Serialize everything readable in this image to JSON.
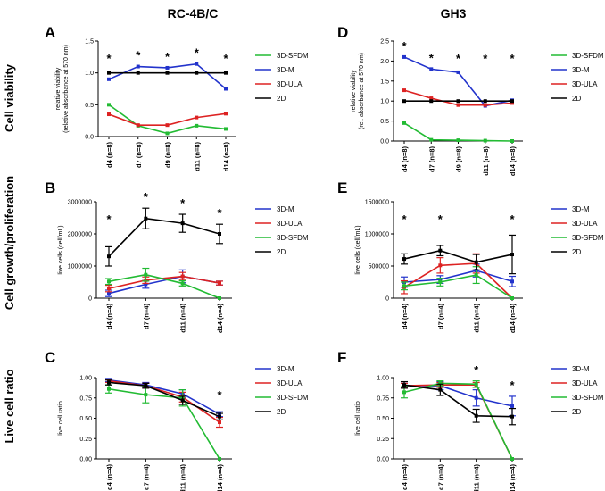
{
  "figure": {
    "column_titles": [
      "RC-4B/C",
      "GH3"
    ],
    "row_labels": [
      "Cell viability",
      "Cell growth/proliferation",
      "Live cell ratio"
    ]
  },
  "chart_data": [
    {
      "panel": "A",
      "type": "line",
      "column": "RC-4B/C",
      "row": "Cell viability",
      "ylabel": [
        "relative viability",
        "(relative absorbance at 570 nm)"
      ],
      "categories": [
        "d4 (n=8)",
        "d7 (n=8)",
        "d9 (n=8)",
        "d11 (n=8)",
        "d14 (n=8)"
      ],
      "ylim": [
        0,
        1.5
      ],
      "yticks": [
        {
          "v": 0,
          "label": "0.0"
        },
        {
          "v": 0.5,
          "label": "0.5"
        },
        {
          "v": 1,
          "label": "1.0"
        },
        {
          "v": 1.5,
          "label": "1.5"
        }
      ],
      "significance": [
        "*",
        "*",
        "*",
        "*",
        "*"
      ],
      "series": [
        {
          "name": "3D-SFDM",
          "color": "#22bb33",
          "values": [
            0.5,
            0.17,
            0.05,
            0.17,
            0.12
          ]
        },
        {
          "name": "3D-M",
          "color": "#2233cc",
          "values": [
            0.9,
            1.1,
            1.08,
            1.14,
            0.75
          ]
        },
        {
          "name": "3D-ULA",
          "color": "#dd2222",
          "values": [
            0.35,
            0.18,
            0.18,
            0.3,
            0.36
          ]
        },
        {
          "name": "2D",
          "color": "#000000",
          "values": [
            1.0,
            1.0,
            1.0,
            1.0,
            1.0
          ]
        }
      ]
    },
    {
      "panel": "D",
      "type": "line",
      "column": "GH3",
      "row": "Cell viability",
      "ylabel": [
        "relative viability",
        "(rel. absorbance at 570 nm)"
      ],
      "categories": [
        "d4 (n=8)",
        "d7 (n=8)",
        "d9 (n=8)",
        "d11 (n=8)",
        "d14 (n=8)"
      ],
      "ylim": [
        0,
        2.5
      ],
      "yticks": [
        {
          "v": 0,
          "label": "0.0"
        },
        {
          "v": 0.5,
          "label": "0.5"
        },
        {
          "v": 1,
          "label": "1.0"
        },
        {
          "v": 1.5,
          "label": "1.5"
        },
        {
          "v": 2,
          "label": "2.0"
        },
        {
          "v": 2.5,
          "label": "2.5"
        }
      ],
      "significance": [
        "*",
        "*",
        "*",
        "*",
        "*"
      ],
      "series": [
        {
          "name": "3D-SFDM",
          "color": "#22bb33",
          "values": [
            0.45,
            0.03,
            0.02,
            0.01,
            0.0
          ]
        },
        {
          "name": "3D-M",
          "color": "#2233cc",
          "values": [
            2.1,
            1.8,
            1.72,
            0.88,
            1.02
          ]
        },
        {
          "name": "3D-ULA",
          "color": "#dd2222",
          "values": [
            1.27,
            1.07,
            0.9,
            0.9,
            0.95
          ]
        },
        {
          "name": "2D",
          "color": "#000000",
          "values": [
            1.0,
            1.0,
            1.0,
            1.0,
            1.0
          ]
        }
      ]
    },
    {
      "panel": "B",
      "type": "line",
      "column": "RC-4B/C",
      "row": "Cell growth/proliferation",
      "ylabel": [
        "live cells (cell/mL)"
      ],
      "categories": [
        "d4 (n=4)",
        "d7 (n=4)",
        "d11 (n=4)",
        "d14 (n=4)"
      ],
      "ylim": [
        0,
        3000000
      ],
      "yticks": [
        {
          "v": 0,
          "label": "0"
        },
        {
          "v": 1000000,
          "label": "1000000"
        },
        {
          "v": 2000000,
          "label": "2000000"
        },
        {
          "v": 3000000,
          "label": "3000000"
        }
      ],
      "significance": [
        "*",
        "*",
        "*",
        "*"
      ],
      "series": [
        {
          "name": "3D-M",
          "color": "#2233cc",
          "values": [
            150000,
            430000,
            680000,
            470000
          ],
          "errors": [
            100000,
            120000,
            200000,
            60000
          ]
        },
        {
          "name": "3D-ULA",
          "color": "#dd2222",
          "values": [
            300000,
            560000,
            680000,
            470000
          ],
          "errors": [
            100000,
            100000,
            120000,
            60000
          ]
        },
        {
          "name": "3D-SFDM",
          "color": "#22bb33",
          "values": [
            520000,
            730000,
            460000,
            0
          ],
          "errors": [
            90000,
            200000,
            80000,
            0
          ]
        },
        {
          "name": "2D",
          "color": "#000000",
          "values": [
            1300000,
            2480000,
            2330000,
            2000000
          ],
          "errors": [
            300000,
            320000,
            280000,
            300000
          ]
        }
      ]
    },
    {
      "panel": "E",
      "type": "line",
      "column": "GH3",
      "row": "Cell growth/proliferation",
      "ylabel": [
        "live cells (cell/mL)"
      ],
      "categories": [
        "d4 (n=4)",
        "d7 (n=4)",
        "d11 (n=4)",
        "d14 (n=4)"
      ],
      "ylim": [
        0,
        1500000
      ],
      "yticks": [
        {
          "v": 0,
          "label": "0"
        },
        {
          "v": 500000,
          "label": "500000"
        },
        {
          "v": 1000000,
          "label": "1000000"
        },
        {
          "v": 1500000,
          "label": "1500000"
        }
      ],
      "significance": [
        "*",
        "*",
        "",
        "*"
      ],
      "series": [
        {
          "name": "3D-M",
          "color": "#2233cc",
          "values": [
            250000,
            290000,
            430000,
            260000
          ],
          "errors": [
            80000,
            60000,
            100000,
            80000
          ]
        },
        {
          "name": "3D-ULA",
          "color": "#dd2222",
          "values": [
            170000,
            510000,
            540000,
            0
          ],
          "errors": [
            100000,
            120000,
            150000,
            0
          ]
        },
        {
          "name": "3D-SFDM",
          "color": "#22bb33",
          "values": [
            190000,
            250000,
            360000,
            0
          ],
          "errors": [
            60000,
            60000,
            130000,
            0
          ]
        },
        {
          "name": "2D",
          "color": "#000000",
          "values": [
            610000,
            740000,
            560000,
            680000
          ],
          "errors": [
            80000,
            80000,
            120000,
            300000
          ]
        }
      ]
    },
    {
      "panel": "C",
      "type": "line",
      "column": "RC-4B/C",
      "row": "Live cell ratio",
      "ylabel": [
        "live cell ratio"
      ],
      "categories": [
        "d4 (n=4)",
        "d7 (n=4)",
        "d11 (n=4)",
        "d14 (n=4)"
      ],
      "ylim": [
        0,
        1.0
      ],
      "yticks": [
        {
          "v": 0,
          "label": "0.00"
        },
        {
          "v": 0.25,
          "label": "0.25"
        },
        {
          "v": 0.5,
          "label": "0.50"
        },
        {
          "v": 0.75,
          "label": "0.75"
        },
        {
          "v": 1.0,
          "label": "1.00"
        }
      ],
      "significance": [
        "",
        "",
        "",
        "*"
      ],
      "series": [
        {
          "name": "3D-M",
          "color": "#2233cc",
          "values": [
            0.97,
            0.91,
            0.8,
            0.55
          ],
          "errors": [
            0.02,
            0.03,
            0.05,
            0.03
          ]
        },
        {
          "name": "3D-ULA",
          "color": "#dd2222",
          "values": [
            0.96,
            0.9,
            0.76,
            0.45
          ],
          "errors": [
            0.02,
            0.03,
            0.06,
            0.06
          ]
        },
        {
          "name": "3D-SFDM",
          "color": "#22bb33",
          "values": [
            0.86,
            0.79,
            0.75,
            0.0
          ],
          "errors": [
            0.05,
            0.1,
            0.1,
            0
          ]
        },
        {
          "name": "2D",
          "color": "#000000",
          "values": [
            0.94,
            0.9,
            0.72,
            0.52
          ],
          "errors": [
            0.03,
            0.03,
            0.05,
            0.04
          ]
        }
      ]
    },
    {
      "panel": "F",
      "type": "line",
      "column": "GH3",
      "row": "Live cell ratio",
      "ylabel": [
        "live cell ratio"
      ],
      "categories": [
        "d4 (n=4)",
        "d7 (n=4)",
        "d11 (n=4)",
        "d14 (n=4)"
      ],
      "ylim": [
        0,
        1.0
      ],
      "yticks": [
        {
          "v": 0,
          "label": "0.00"
        },
        {
          "v": 0.25,
          "label": "0.25"
        },
        {
          "v": 0.5,
          "label": "0.50"
        },
        {
          "v": 0.75,
          "label": "0.75"
        },
        {
          "v": 1.0,
          "label": "1.00"
        }
      ],
      "significance": [
        "",
        "",
        "*",
        "*"
      ],
      "series": [
        {
          "name": "3D-M",
          "color": "#2233cc",
          "values": [
            0.9,
            0.9,
            0.75,
            0.65
          ],
          "errors": [
            0.03,
            0.05,
            0.1,
            0.12
          ]
        },
        {
          "name": "3D-ULA",
          "color": "#dd2222",
          "values": [
            0.9,
            0.91,
            0.91,
            0.0
          ],
          "errors": [
            0.03,
            0.03,
            0.03,
            0
          ]
        },
        {
          "name": "3D-SFDM",
          "color": "#22bb33",
          "values": [
            0.82,
            0.93,
            0.92,
            0.0
          ],
          "errors": [
            0.07,
            0.03,
            0.04,
            0
          ]
        },
        {
          "name": "2D",
          "color": "#000000",
          "values": [
            0.91,
            0.85,
            0.53,
            0.52
          ],
          "errors": [
            0.04,
            0.07,
            0.08,
            0.1
          ]
        }
      ]
    }
  ]
}
